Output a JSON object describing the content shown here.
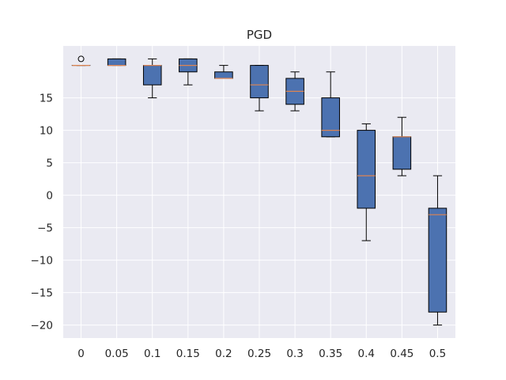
{
  "chart_data": {
    "type": "box",
    "title": "PGD",
    "xlabel": "",
    "ylabel": "",
    "ylim": [
      -22,
      23
    ],
    "grid": true,
    "yticks": [
      -20,
      -15,
      -10,
      -5,
      0,
      5,
      10,
      15
    ],
    "ytick_labels": [
      "−20",
      "−15",
      "−10",
      "−5",
      "0",
      "5",
      "10",
      "15"
    ],
    "categories": [
      "0",
      "0.05",
      "0.1",
      "0.15",
      "0.2",
      "0.25",
      "0.3",
      "0.35",
      "0.4",
      "0.45",
      "0.5"
    ],
    "boxes": [
      {
        "whislo": 20,
        "q1": 20,
        "med": 20,
        "q3": 20,
        "whishi": 20,
        "fliers": [
          21
        ]
      },
      {
        "whislo": 20,
        "q1": 20,
        "med": 20,
        "q3": 21,
        "whishi": 21,
        "fliers": []
      },
      {
        "whislo": 15,
        "q1": 17,
        "med": 20,
        "q3": 20,
        "whishi": 21,
        "fliers": []
      },
      {
        "whislo": 17,
        "q1": 19,
        "med": 20,
        "q3": 21,
        "whishi": 21,
        "fliers": []
      },
      {
        "whislo": 18,
        "q1": 18,
        "med": 18,
        "q3": 19,
        "whishi": 20,
        "fliers": []
      },
      {
        "whislo": 13,
        "q1": 15,
        "med": 17,
        "q3": 20,
        "whishi": 20,
        "fliers": []
      },
      {
        "whislo": 13,
        "q1": 14,
        "med": 16,
        "q3": 18,
        "whishi": 19,
        "fliers": []
      },
      {
        "whislo": 9,
        "q1": 9,
        "med": 10,
        "q3": 15,
        "whishi": 19,
        "fliers": []
      },
      {
        "whislo": -7,
        "q1": -2,
        "med": 3,
        "q3": 10,
        "whishi": 11,
        "fliers": []
      },
      {
        "whislo": 3,
        "q1": 4,
        "med": 9,
        "q3": 9,
        "whishi": 12,
        "fliers": []
      },
      {
        "whislo": -20,
        "q1": -18,
        "med": -3,
        "q3": -2,
        "whishi": 3,
        "fliers": []
      }
    ],
    "colors": {
      "background": "#eaeaf2",
      "grid": "#ffffff",
      "box_fill": "#4c72b0",
      "median": "#dd8452",
      "edge": "#000000",
      "text": "#262626"
    }
  }
}
